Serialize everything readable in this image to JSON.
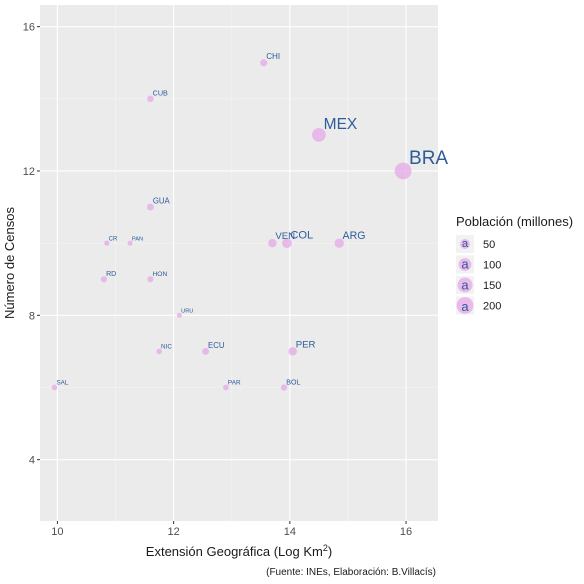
{
  "chart_data": {
    "type": "scatter",
    "title": "",
    "xlabel": "Extensión Geográfica (Log Km",
    "xlabel_sup": "2",
    "xlabel_end": ")",
    "ylabel": "Número de Censos",
    "caption": "(Fuente: INEs, Elaboración: B.Villacís)",
    "xlim": [
      9.7,
      16.55
    ],
    "ylim": [
      2.3,
      16.6
    ],
    "xticks": [
      10,
      12,
      14,
      16
    ],
    "yticks": [
      4,
      8,
      12,
      16
    ],
    "grid": true,
    "legend": {
      "title": "Población (millones)",
      "position": "right",
      "sizes": [
        50,
        100,
        150,
        200
      ],
      "glyph": "a"
    },
    "colors": {
      "point_fill": "#e6a8e8",
      "point_alpha": 0.75,
      "label": "#2e5b9a",
      "panel": "#ebebeb",
      "grid_major": "#ffffff"
    },
    "points": [
      {
        "label": "CHI",
        "x": 13.55,
        "y": 15.0,
        "pop": 17
      },
      {
        "label": "CUB",
        "x": 11.6,
        "y": 14.0,
        "pop": 11
      },
      {
        "label": "MEX",
        "x": 14.5,
        "y": 13.0,
        "pop": 119
      },
      {
        "label": "BRA",
        "x": 15.95,
        "y": 12.0,
        "pop": 200
      },
      {
        "label": "GUA",
        "x": 11.6,
        "y": 11.0,
        "pop": 15
      },
      {
        "label": "CR",
        "x": 10.85,
        "y": 10.0,
        "pop": 4.7
      },
      {
        "label": "PAN",
        "x": 11.25,
        "y": 10.0,
        "pop": 3.8
      },
      {
        "label": "VEN",
        "x": 13.7,
        "y": 10.0,
        "pop": 30
      },
      {
        "label": "COL",
        "x": 13.95,
        "y": 10.0,
        "pop": 47
      },
      {
        "label": "ARG",
        "x": 14.85,
        "y": 10.0,
        "pop": 41
      },
      {
        "label": "RD",
        "x": 10.8,
        "y": 9.0,
        "pop": 10
      },
      {
        "label": "HON",
        "x": 11.6,
        "y": 9.0,
        "pop": 8
      },
      {
        "label": "URU",
        "x": 12.1,
        "y": 8.0,
        "pop": 3.4
      },
      {
        "label": "NIC",
        "x": 11.75,
        "y": 7.0,
        "pop": 6
      },
      {
        "label": "ECU",
        "x": 12.55,
        "y": 7.0,
        "pop": 15
      },
      {
        "label": "PER",
        "x": 14.05,
        "y": 7.0,
        "pop": 30
      },
      {
        "label": "SAL",
        "x": 9.95,
        "y": 6.0,
        "pop": 6.3
      },
      {
        "label": "PAR",
        "x": 12.9,
        "y": 6.0,
        "pop": 6.8
      },
      {
        "label": "BOL",
        "x": 13.9,
        "y": 6.0,
        "pop": 10.5
      }
    ]
  }
}
